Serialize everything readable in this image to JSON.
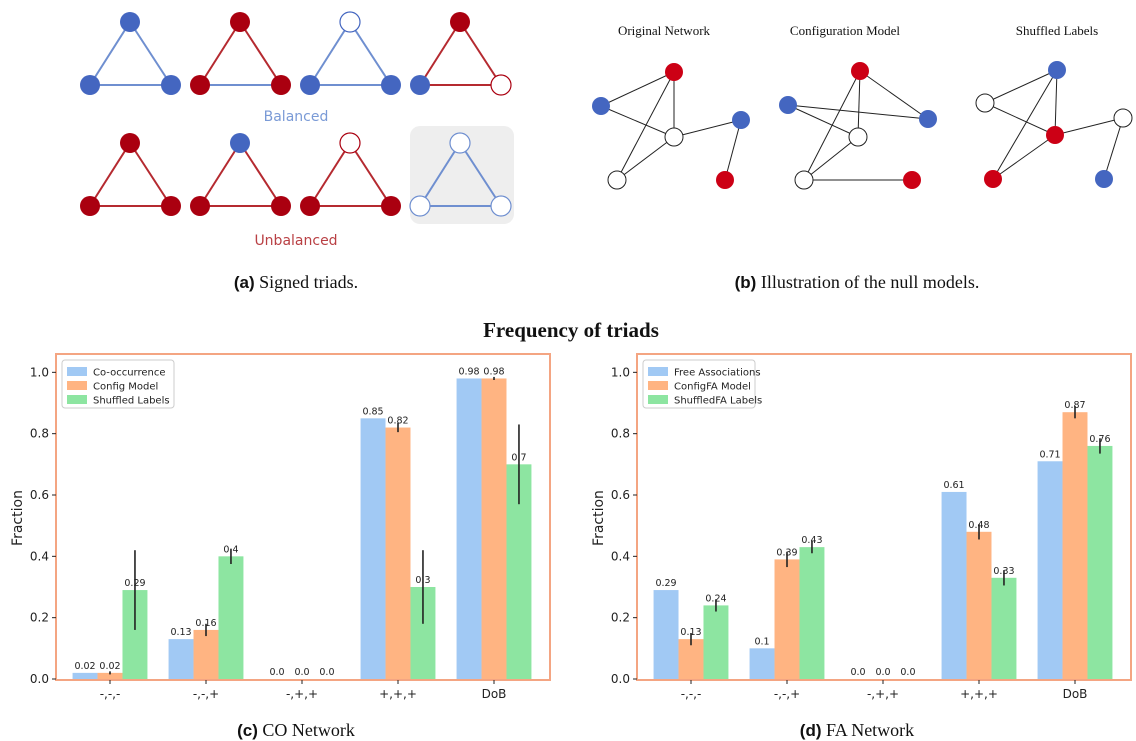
{
  "colors": {
    "blue_node": "#4466c0",
    "red_node": "#aa0010",
    "blue_edge": "#6f8fd0",
    "red_edge": "#b52a30",
    "balanced_text": "#7a9ad6",
    "unbalanced_text": "#b94044",
    "frame": "#f4a582",
    "series": [
      "#a1c9f4",
      "#ffb482",
      "#8de5a1"
    ],
    "error_bar": "#222222"
  },
  "triads": {
    "balanced_label": "Balanced",
    "unbalanced_label": "Unbalanced",
    "caption_prefix": "(a)",
    "caption_text": " Signed triads."
  },
  "null_models": {
    "titles": [
      "Original Network",
      "Configuration Model",
      "Shuffled Labels"
    ],
    "caption_prefix": "(b)",
    "caption_text": " Illustration of the null models."
  },
  "figure_title": "Frequency of triads",
  "chart_data": [
    {
      "type": "bar",
      "caption_prefix": "(c)",
      "caption_text": " CO Network",
      "categories": [
        "-,-,-",
        "-,-,+",
        "-,+,+",
        "+,+,+",
        "DoB"
      ],
      "ylabel": "Fraction",
      "ylim": [
        0,
        1.05
      ],
      "yticks": [
        "0.0",
        "0.2",
        "0.4",
        "0.6",
        "0.8",
        "1.0"
      ],
      "legend_position": "top-left",
      "series": [
        {
          "name": "Co-occurrence",
          "values": [
            0.02,
            0.13,
            0.0,
            0.85,
            0.98
          ],
          "labels": [
            "0.02",
            "0.13",
            "0.0",
            "0.85",
            "0.98"
          ],
          "err": [
            0,
            0,
            0,
            0,
            0
          ]
        },
        {
          "name": "Config Model",
          "values": [
            0.02,
            0.16,
            0.0,
            0.82,
            0.98
          ],
          "labels": [
            "0.02",
            "0.16",
            "0.0",
            "0.82",
            "0.98"
          ],
          "err": [
            0.005,
            0.02,
            0,
            0.015,
            0.005
          ]
        },
        {
          "name": "Shuffled Labels",
          "values": [
            0.29,
            0.4,
            0.0,
            0.3,
            0.7
          ],
          "labels": [
            "0.29",
            "0.4",
            "0.0",
            "0.3",
            "0.7"
          ],
          "err": [
            0.13,
            0.025,
            0,
            0.12,
            0.13
          ]
        }
      ]
    },
    {
      "type": "bar",
      "caption_prefix": "(d)",
      "caption_text": " FA Network",
      "categories": [
        "-,-,-",
        "-,-,+",
        "-,+,+",
        "+,+,+",
        "DoB"
      ],
      "ylabel": "Fraction",
      "ylim": [
        0,
        1.05
      ],
      "yticks": [
        "0.0",
        "0.2",
        "0.4",
        "0.6",
        "0.8",
        "1.0"
      ],
      "legend_position": "top-left",
      "series": [
        {
          "name": "Free Associations",
          "values": [
            0.29,
            0.1,
            0.0,
            0.61,
            0.71
          ],
          "labels": [
            "0.29",
            "0.1",
            "0.0",
            "0.61",
            "0.71"
          ],
          "err": [
            0,
            0,
            0,
            0,
            0
          ]
        },
        {
          "name": "ConfigFA Model",
          "values": [
            0.13,
            0.39,
            0.0,
            0.48,
            0.87
          ],
          "labels": [
            "0.13",
            "0.39",
            "0.0",
            "0.48",
            "0.87"
          ],
          "err": [
            0.02,
            0.025,
            0,
            0.025,
            0.02
          ]
        },
        {
          "name": "ShuffledFA Labels",
          "values": [
            0.24,
            0.43,
            0.0,
            0.33,
            0.76
          ],
          "labels": [
            "0.24",
            "0.43",
            "0.0",
            "0.33",
            "0.76"
          ],
          "err": [
            0.02,
            0.02,
            0,
            0.025,
            0.025
          ]
        }
      ]
    }
  ]
}
